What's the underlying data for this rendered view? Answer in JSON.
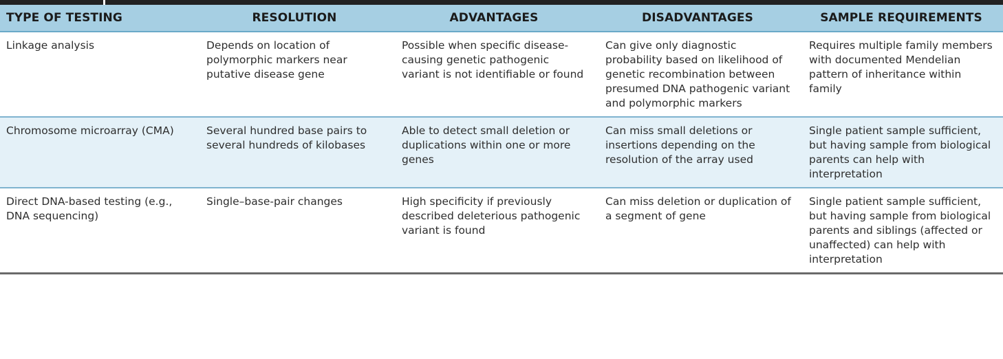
{
  "table": {
    "headers": [
      "TYPE OF TESTING",
      "RESOLUTION",
      "ADVANTAGES",
      "DISADVANTAGES",
      "SAMPLE REQUIREMENTS"
    ],
    "rows": [
      {
        "type": "Linkage analysis",
        "resolution": "Depends on location of polymorphic markers near putative disease gene",
        "advantages": "Possible when specific disease-causing genetic pathogenic variant is not identifiable or found",
        "disadvantages": "Can give only diagnostic probability based on likelihood of genetic recombination between presumed DNA pathogenic variant and polymorphic markers",
        "sample": "Requires multiple family members with documented Mendelian pattern of inheritance within family"
      },
      {
        "type": "Chromosome microarray (CMA)",
        "resolution": "Several hundred base pairs to several hundreds of kilobases",
        "advantages": "Able to detect small deletion or duplications within one or more genes",
        "disadvantages": "Can miss small deletions or insertions depending on the resolution of the array used",
        "sample": "Single patient sample sufficient, but having sample from biological parents can help with interpretation"
      },
      {
        "type": "Direct DNA-based testing (e.g., DNA sequencing)",
        "resolution": "Single–base-pair changes",
        "advantages": "High specificity if previously described deleterious pathogenic variant is found",
        "disadvantages": "Can miss deletion or duplication of a segment of gene",
        "sample": "Single patient sample sufficient, but having sample from biological parents and siblings (affected or unaffected) can help with interpretation"
      }
    ]
  },
  "colors": {
    "header_bg": "#a6cfe3",
    "alt_row_bg": "#e4f1f8",
    "top_bar": "#222222"
  }
}
